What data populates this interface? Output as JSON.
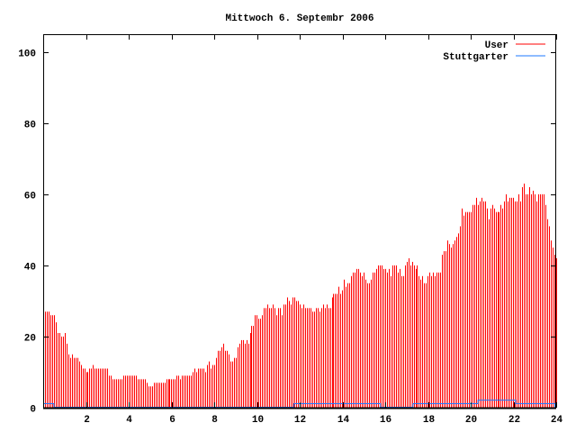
{
  "chart_data": {
    "type": "bar",
    "title": "Mittwoch 6. Septembr 2006",
    "xlabel": "",
    "ylabel": "",
    "xlim": [
      0,
      24
    ],
    "ylim": [
      0,
      105
    ],
    "x_ticks": [
      "2",
      "4",
      "6",
      "8",
      "10",
      "12",
      "14",
      "16",
      "18",
      "20",
      "22",
      "24"
    ],
    "y_ticks": [
      "0",
      "20",
      "40",
      "60",
      "80",
      "100"
    ],
    "legend_position": "top-right",
    "x_interval_hours": 0.0833,
    "series": [
      {
        "name": "User",
        "color": "#ff0000",
        "style": "impulses",
        "values": [
          27,
          27,
          27,
          26,
          26,
          26,
          24,
          21,
          21,
          20,
          20,
          21,
          18,
          15,
          14,
          15,
          14,
          14,
          14,
          13,
          12,
          11,
          11,
          10,
          10,
          11,
          11,
          12,
          11,
          11,
          11,
          11,
          11,
          11,
          11,
          11,
          9,
          9,
          8,
          8,
          8,
          8,
          8,
          8,
          9,
          9,
          9,
          9,
          9,
          9,
          9,
          9,
          8,
          8,
          8,
          8,
          8,
          7,
          6,
          6,
          6,
          7,
          7,
          7,
          7,
          7,
          7,
          7,
          8,
          8,
          8,
          8,
          8,
          8,
          9,
          9,
          8,
          9,
          9,
          9,
          9,
          9,
          9,
          10,
          11,
          10,
          11,
          11,
          11,
          11,
          10,
          12,
          13,
          11,
          12,
          12,
          14,
          16,
          16,
          17,
          18,
          16,
          16,
          15,
          13,
          13,
          14,
          14,
          17,
          18,
          19,
          19,
          18,
          19,
          18,
          21,
          23,
          23,
          26,
          26,
          25,
          25,
          26,
          28,
          28,
          29,
          28,
          28,
          29,
          28,
          26,
          28,
          28,
          26,
          29,
          29,
          31,
          30,
          29,
          31,
          31,
          30,
          30,
          29,
          28,
          29,
          28,
          28,
          28,
          28,
          27,
          27,
          28,
          28,
          27,
          28,
          29,
          28,
          29,
          28,
          28,
          31,
          32,
          32,
          32,
          34,
          32,
          33,
          36,
          34,
          35,
          35,
          37,
          38,
          38,
          39,
          39,
          38,
          37,
          38,
          36,
          35,
          35,
          36,
          38,
          38,
          39,
          40,
          40,
          40,
          39,
          39,
          38,
          39,
          37,
          40,
          40,
          40,
          38,
          39,
          37,
          37,
          40,
          41,
          42,
          40,
          41,
          40,
          39,
          40,
          37,
          36,
          37,
          35,
          35,
          37,
          38,
          37,
          38,
          37,
          38,
          38,
          38,
          43,
          44,
          44,
          47,
          46,
          45,
          46,
          47,
          48,
          49,
          51,
          56,
          54,
          55,
          55,
          55,
          55,
          57,
          57,
          59,
          57,
          58,
          59,
          58,
          58,
          56,
          53,
          56,
          57,
          56,
          55,
          55,
          55,
          57,
          56,
          58,
          60,
          58,
          59,
          59,
          59,
          58,
          58,
          60,
          58,
          62,
          63,
          60,
          60,
          62,
          60,
          61,
          60,
          58,
          60,
          60,
          60,
          60,
          57,
          53,
          51,
          47,
          45,
          43,
          42
        ]
      },
      {
        "name": "Stuttgarter",
        "color": "#1e78ff",
        "style": "steps",
        "points": [
          [
            0,
            1
          ],
          [
            0.5,
            1
          ],
          [
            0.5,
            0
          ],
          [
            11.73,
            0
          ],
          [
            11.73,
            1
          ],
          [
            15.78,
            1
          ],
          [
            15.78,
            0
          ],
          [
            17.3,
            0
          ],
          [
            17.3,
            1
          ],
          [
            20.34,
            1
          ],
          [
            20.34,
            2
          ],
          [
            22.1,
            2
          ],
          [
            22.1,
            1
          ],
          [
            23.94,
            1
          ],
          [
            23.94,
            0
          ],
          [
            24,
            0
          ]
        ]
      }
    ]
  }
}
